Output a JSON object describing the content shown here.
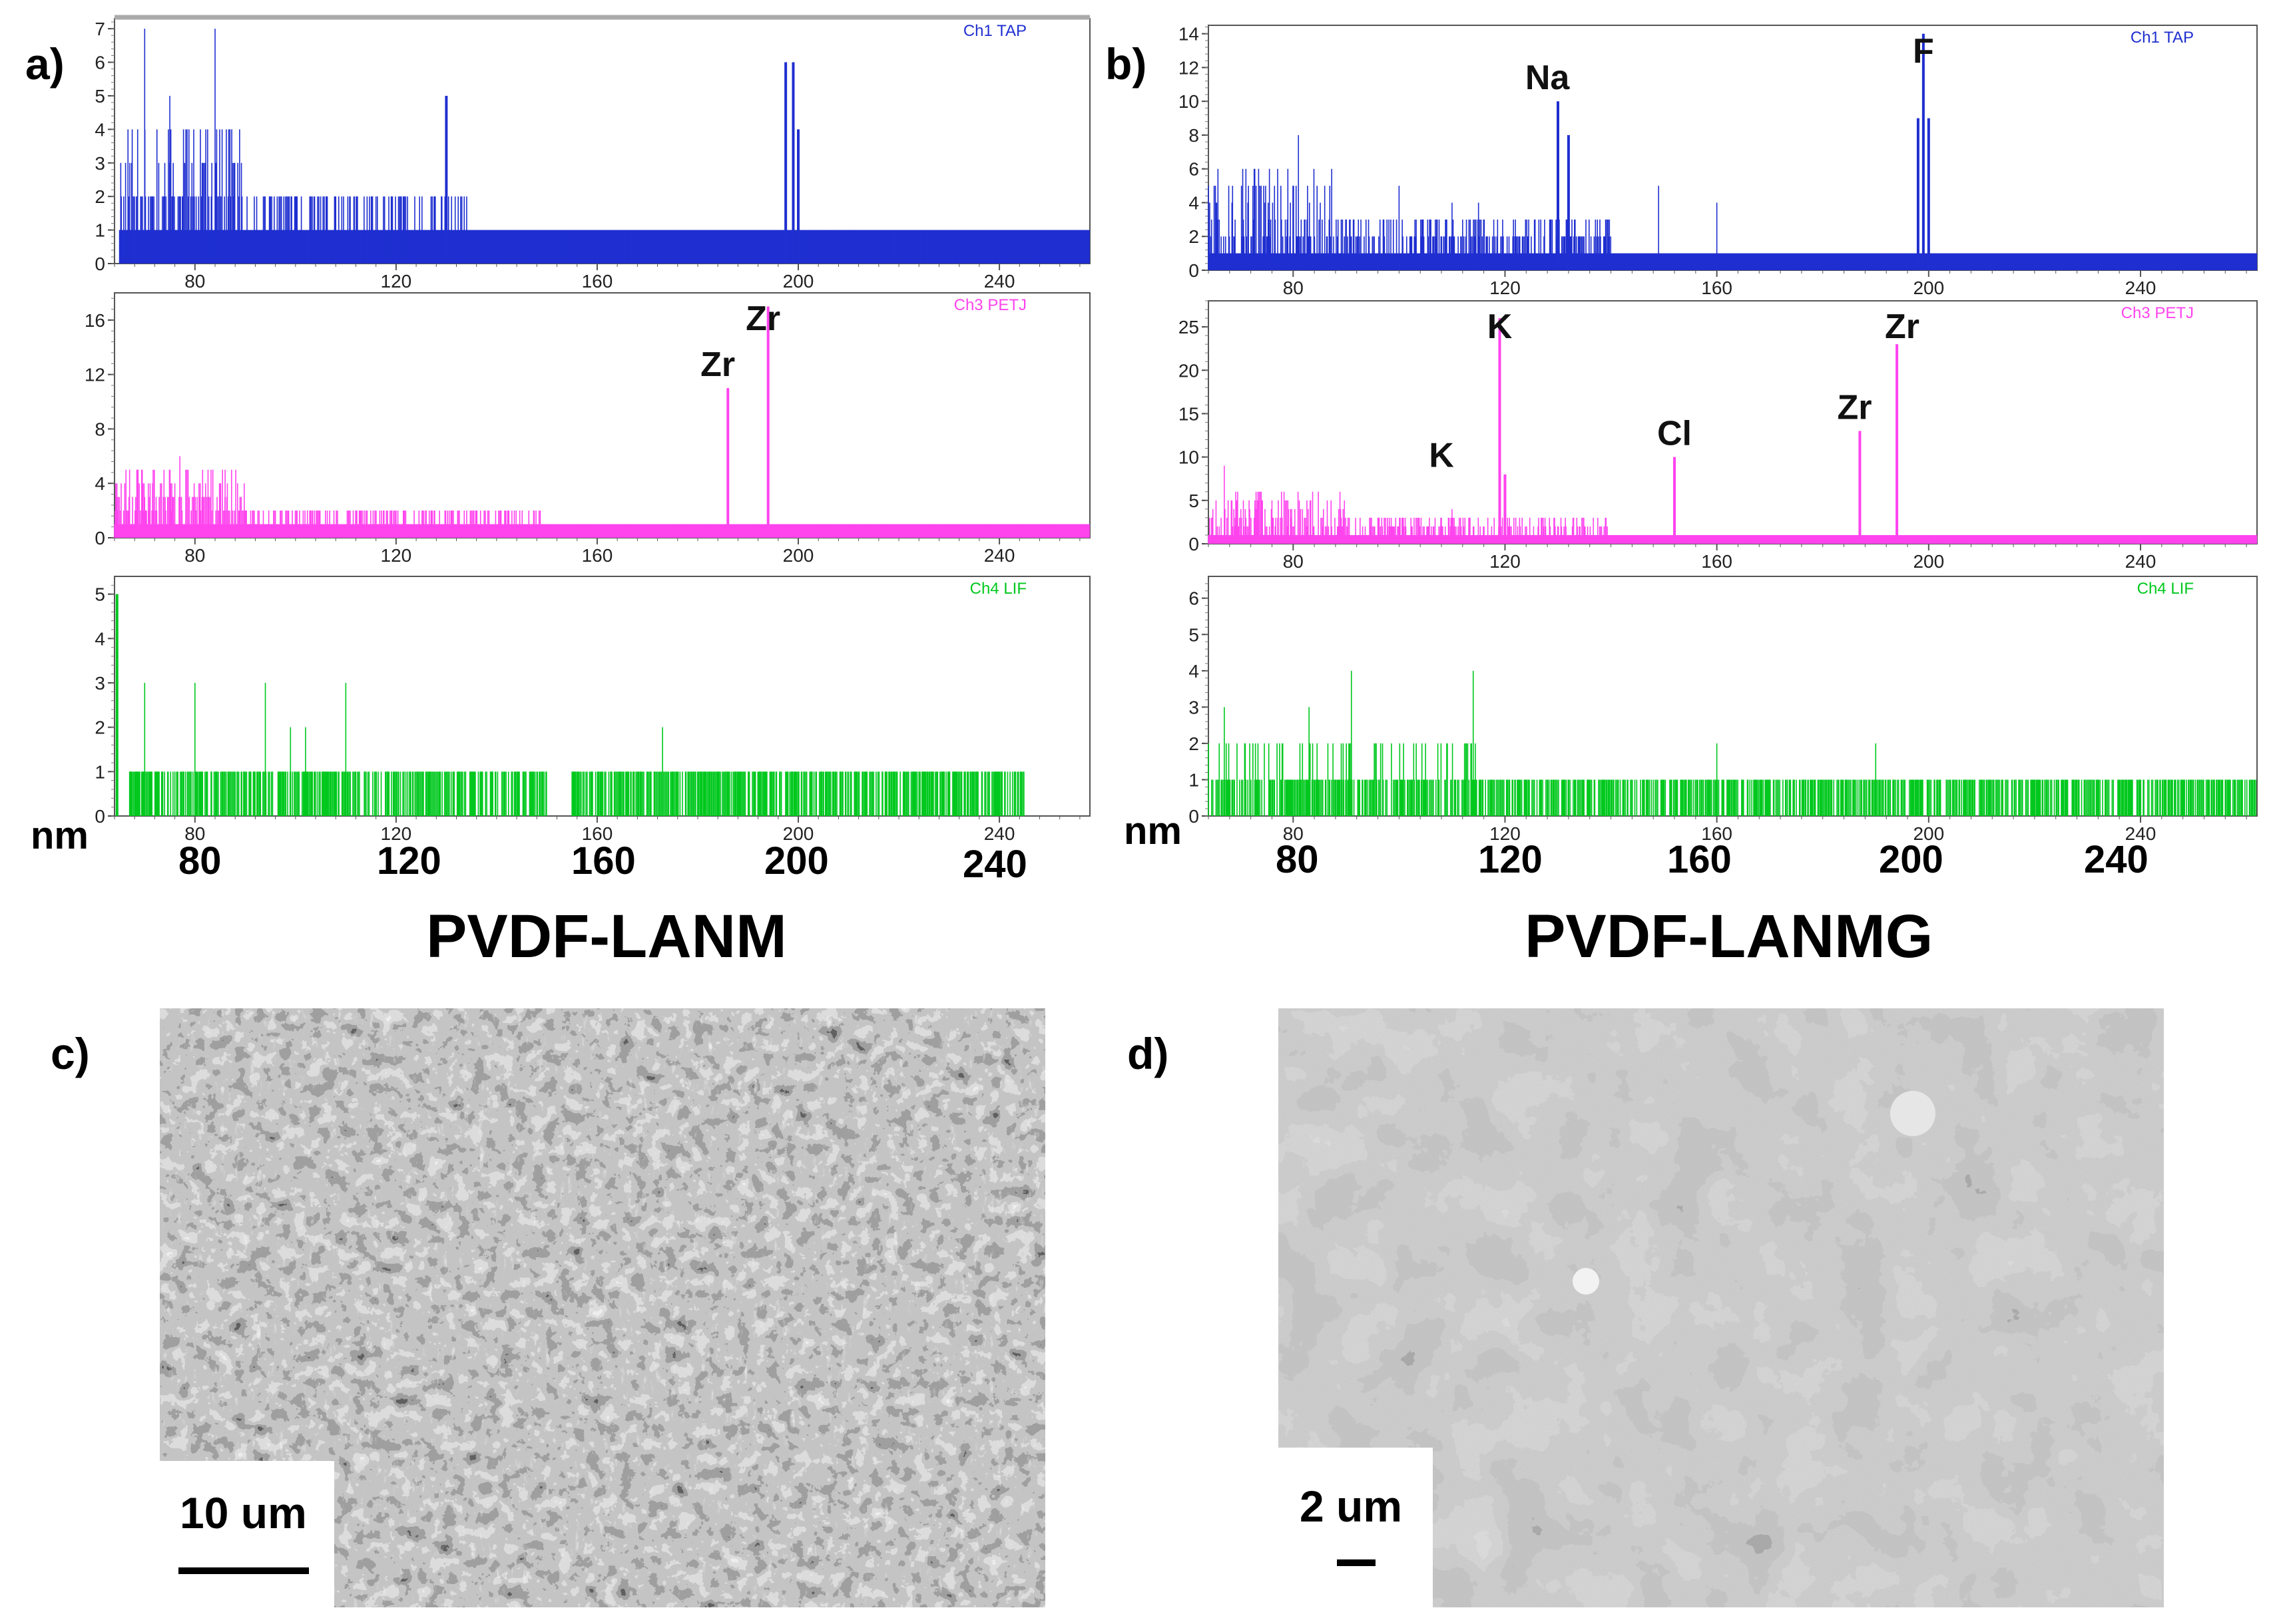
{
  "panel_labels": {
    "a": "a)",
    "b": "b)",
    "c": "c)",
    "d": "d)"
  },
  "spectra": {
    "a": {
      "sample_title": "PVDF-LANM",
      "unit_label": "nm",
      "big_ticks": [
        "80",
        "120",
        "160",
        "200",
        "240"
      ]
    },
    "b": {
      "sample_title": "PVDF-LANMG",
      "unit_label": "nm",
      "big_ticks": [
        "80",
        "120",
        "160",
        "200",
        "240"
      ]
    }
  },
  "sem": {
    "c": {
      "scale_label": "10 um"
    },
    "d": {
      "scale_label": "2 um"
    }
  },
  "chart_data": [
    {
      "type": "bar",
      "id": "a-tap",
      "channel_label": "Ch1 TAP",
      "color": "#1f2fd0",
      "xlabel": "nm",
      "xlim": [
        64,
        258
      ],
      "ylim": [
        0,
        7.3
      ],
      "xticks": [
        80,
        120,
        160,
        200,
        240
      ],
      "yticks": [
        0,
        1,
        2,
        3,
        4,
        5,
        6,
        7
      ],
      "noise": {
        "seed": 11,
        "density": 1.0,
        "levels": [
          [
            65,
            90,
            4
          ],
          [
            90,
            135,
            2
          ],
          [
            135,
            258,
            1
          ]
        ],
        "spikes": [
          [
            70,
            7
          ],
          [
            84,
            7
          ],
          [
            75,
            5
          ],
          [
            108,
            2
          ],
          [
            116,
            2
          ]
        ]
      },
      "peaks": [
        [
          130,
          5
        ],
        [
          197.5,
          6
        ],
        [
          199,
          6
        ],
        [
          200,
          4
        ]
      ],
      "annotations": []
    },
    {
      "type": "bar",
      "id": "a-petj",
      "channel_label": "Ch3 PETJ",
      "color": "#ff44ee",
      "xlabel": "nm",
      "xlim": [
        64,
        258
      ],
      "ylim": [
        0,
        18
      ],
      "xticks": [
        80,
        120,
        160,
        200,
        240
      ],
      "yticks": [
        0,
        4,
        8,
        12,
        16
      ],
      "noise": {
        "seed": 23,
        "density": 1.0,
        "levels": [
          [
            64,
            90,
            5
          ],
          [
            90,
            150,
            2
          ],
          [
            150,
            258,
            1
          ]
        ],
        "spikes": [
          [
            77,
            6
          ],
          [
            86,
            5
          ]
        ]
      },
      "peaks": [
        [
          186,
          11
        ],
        [
          194,
          17
        ]
      ],
      "annotations": [
        {
          "text": "Zr",
          "x": 184
        },
        {
          "text": "Zr",
          "x": 193
        }
      ]
    },
    {
      "type": "bar",
      "id": "a-lif",
      "channel_label": "Ch4 LIF",
      "color": "#00c81e",
      "xlabel": "nm",
      "xlim": [
        64,
        258
      ],
      "ylim": [
        0,
        5.4
      ],
      "xticks": [
        80,
        120,
        160,
        200,
        240
      ],
      "yticks": [
        0,
        1,
        2,
        3,
        4,
        5
      ],
      "noise": {
        "seed": 37,
        "density": 0.55,
        "levels": [
          [
            67,
            150,
            1
          ],
          [
            155,
            245,
            1
          ]
        ],
        "spikes": [
          [
            70,
            3
          ],
          [
            80,
            3
          ],
          [
            94,
            3
          ],
          [
            110,
            3
          ],
          [
            173,
            2
          ],
          [
            99,
            2
          ],
          [
            102,
            2
          ]
        ]
      },
      "peaks": [
        [
          64.5,
          5
        ]
      ],
      "annotations": []
    },
    {
      "type": "bar",
      "id": "b-tap",
      "channel_label": "Ch1 TAP",
      "color": "#1f2fd0",
      "xlabel": "nm",
      "xlim": [
        64,
        262
      ],
      "ylim": [
        0,
        14.5
      ],
      "xticks": [
        80,
        120,
        160,
        200,
        240
      ],
      "yticks": [
        0,
        2,
        4,
        6,
        8,
        10,
        12,
        14
      ],
      "noise": {
        "seed": 51,
        "density": 1.0,
        "levels": [
          [
            64,
            88,
            6
          ],
          [
            88,
            140,
            3
          ],
          [
            140,
            262,
            1
          ]
        ],
        "spikes": [
          [
            81,
            8
          ],
          [
            100,
            5
          ],
          [
            110,
            4
          ],
          [
            115,
            4
          ],
          [
            149,
            5
          ],
          [
            160,
            4
          ]
        ]
      },
      "peaks": [
        [
          130,
          10
        ],
        [
          132,
          8
        ],
        [
          198,
          9
        ],
        [
          199,
          14
        ],
        [
          200,
          9
        ]
      ],
      "annotations": [
        {
          "text": "Na",
          "x": 128
        },
        {
          "text": "F",
          "x": 199
        }
      ]
    },
    {
      "type": "bar",
      "id": "b-petj",
      "channel_label": "Ch3 PETJ",
      "color": "#ff44ee",
      "xlabel": "nm",
      "xlim": [
        64,
        262
      ],
      "ylim": [
        0,
        28
      ],
      "xticks": [
        80,
        120,
        160,
        200,
        240
      ],
      "yticks": [
        0,
        5,
        10,
        15,
        20,
        25
      ],
      "noise": {
        "seed": 67,
        "density": 1.0,
        "levels": [
          [
            64,
            90,
            6
          ],
          [
            90,
            140,
            3
          ],
          [
            140,
            262,
            1
          ]
        ],
        "spikes": [
          [
            67,
            9
          ],
          [
            76,
            5
          ],
          [
            110,
            4
          ]
        ]
      },
      "peaks": [
        [
          119,
          26
        ],
        [
          120,
          8
        ],
        [
          152,
          10
        ],
        [
          187,
          13
        ],
        [
          194,
          23
        ]
      ],
      "annotations": [
        {
          "text": "K",
          "x": 119
        },
        {
          "text": "K",
          "x": 108
        },
        {
          "text": "Cl",
          "x": 152
        },
        {
          "text": "Zr",
          "x": 186
        },
        {
          "text": "Zr",
          "x": 195
        }
      ]
    },
    {
      "type": "bar",
      "id": "b-lif",
      "channel_label": "Ch4 LIF",
      "color": "#00c81e",
      "xlabel": "nm",
      "xlim": [
        64,
        262
      ],
      "ylim": [
        0,
        6.6
      ],
      "xticks": [
        80,
        120,
        160,
        200,
        240
      ],
      "yticks": [
        0,
        1,
        2,
        3,
        4,
        5,
        6
      ],
      "noise": {
        "seed": 83,
        "density": 0.55,
        "levels": [
          [
            64,
            115,
            2
          ],
          [
            115,
            262,
            1
          ]
        ],
        "spikes": [
          [
            67,
            3
          ],
          [
            83,
            3
          ],
          [
            91,
            4
          ],
          [
            114,
            4
          ],
          [
            105,
            2
          ],
          [
            160,
            2
          ],
          [
            190,
            2
          ]
        ]
      },
      "peaks": [],
      "annotations": []
    }
  ]
}
